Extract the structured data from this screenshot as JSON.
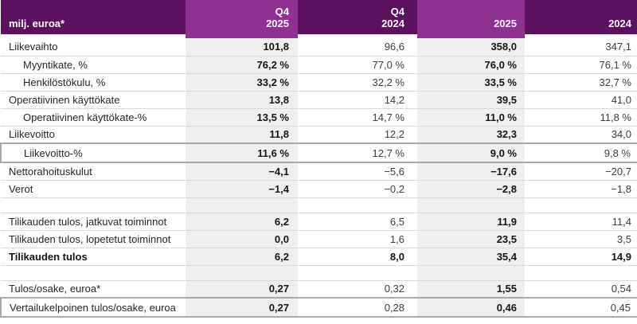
{
  "table": {
    "corner_label": "milj. euroa*",
    "columns": [
      {
        "label": "Q4\n2025",
        "highlight": true
      },
      {
        "label": "Q4\n2024",
        "highlight": false
      },
      {
        "label": "2025",
        "highlight": true
      },
      {
        "label": "2024",
        "highlight": false
      }
    ],
    "rows": [
      {
        "label": "Liikevaihto",
        "values": [
          "101,8",
          "96,6",
          "358,0",
          "347,1"
        ]
      },
      {
        "label": "Myyntikate, %",
        "indent": true,
        "values": [
          "76,2 %",
          "77,0 %",
          "76,0 %",
          "76,1 %"
        ]
      },
      {
        "label": "Henkilöstökulu, %",
        "indent": true,
        "values": [
          "33,2 %",
          "32,2 %",
          "33,5 %",
          "32,7 %"
        ]
      },
      {
        "label": "Operatiivinen käyttökate",
        "values": [
          "13,8",
          "14,2",
          "39,5",
          "41,0"
        ]
      },
      {
        "label": "Operatiivinen käyttökate-%",
        "indent": true,
        "values": [
          "13,5 %",
          "14,7 %",
          "11,0 %",
          "11,8 %"
        ]
      },
      {
        "label": "Liikevoitto",
        "values": [
          "11,8",
          "12,2",
          "32,3",
          "34,0"
        ]
      },
      {
        "label": "Liikevoitto-%",
        "indent": true,
        "boxed": true,
        "values": [
          "11,6 %",
          "12,7 %",
          "9,0 %",
          "9,8 %"
        ]
      },
      {
        "label": "Nettorahoituskulut",
        "values": [
          "−4,1",
          "−5,6",
          "−17,6",
          "−20,7"
        ]
      },
      {
        "label": "Verot",
        "values": [
          "−1,4",
          "−0,2",
          "−2,8",
          "−1,8"
        ]
      },
      {
        "spacer": true
      },
      {
        "label": "Tilikauden tulos, jatkuvat toiminnot",
        "values": [
          "6,2",
          "6,5",
          "11,9",
          "11,4"
        ]
      },
      {
        "label": "Tilikauden tulos, lopetetut toiminnot",
        "values": [
          "0,0",
          "1,6",
          "23,5",
          "3,5"
        ]
      },
      {
        "label": "Tilikauden tulos",
        "bold": true,
        "values": [
          "6,2",
          "8,0",
          "35,4",
          "14,9"
        ]
      },
      {
        "spacer": true
      },
      {
        "label": "Tulos/osake, euroa*",
        "values": [
          "0,27",
          "0,32",
          "1,55",
          "0,54"
        ]
      },
      {
        "label": "Vertailukelpoinen tulos/osake, euroa",
        "boxed": true,
        "values": [
          "0,27",
          "0,28",
          "0,46",
          "0,45"
        ]
      }
    ]
  },
  "colors": {
    "header_dark": "#5b1060",
    "header_highlight": "#8e3190",
    "highlight_column_bg": "#efeff0",
    "row_separator": "#dadada",
    "box_border": "#a9a9a9"
  }
}
